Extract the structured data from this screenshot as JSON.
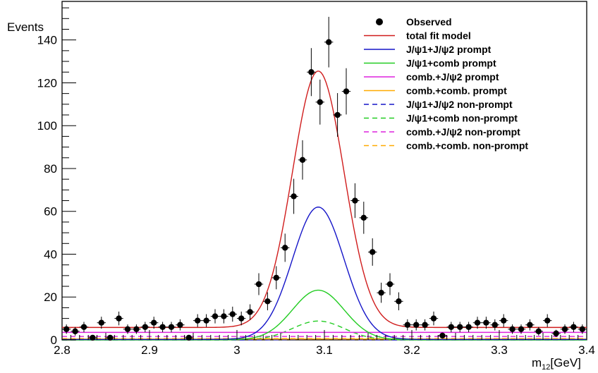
{
  "chart_data": {
    "type": "scatter",
    "title": "",
    "xlabel": "m",
    "xlabel_sub": "12",
    "xlabel_unit": "[GeV]",
    "ylabel": "Events",
    "xlim": [
      2.8,
      3.4
    ],
    "ylim": [
      0,
      158
    ],
    "x_ticks": [
      "2.8",
      "2.9",
      "3",
      "3.1",
      "3.2",
      "3.3",
      "3.4"
    ],
    "y_ticks": [
      "0",
      "20",
      "40",
      "60",
      "80",
      "100",
      "120",
      "140"
    ],
    "grid": false,
    "legend_position": "top-right",
    "bin_halfwidth": 0.005,
    "observed": {
      "name": "Observed",
      "color": "#000000",
      "x": [
        2.805,
        2.815,
        2.825,
        2.835,
        2.845,
        2.855,
        2.865,
        2.875,
        2.885,
        2.895,
        2.905,
        2.915,
        2.925,
        2.935,
        2.945,
        2.955,
        2.965,
        2.975,
        2.985,
        2.995,
        3.005,
        3.015,
        3.025,
        3.035,
        3.045,
        3.055,
        3.065,
        3.075,
        3.085,
        3.095,
        3.105,
        3.115,
        3.125,
        3.135,
        3.145,
        3.155,
        3.165,
        3.175,
        3.185,
        3.195,
        3.205,
        3.215,
        3.225,
        3.235,
        3.245,
        3.255,
        3.265,
        3.275,
        3.285,
        3.295,
        3.305,
        3.315,
        3.325,
        3.335,
        3.345,
        3.355,
        3.365,
        3.375,
        3.385,
        3.395
      ],
      "y": [
        5,
        4,
        6,
        1,
        8,
        1,
        10,
        5,
        5,
        6,
        8,
        6,
        6,
        7,
        1,
        9,
        9,
        11,
        11,
        12,
        10,
        13,
        26,
        18,
        29,
        43,
        67,
        84,
        125,
        111,
        139,
        105,
        116,
        65,
        57,
        41,
        22,
        26,
        18,
        7,
        7,
        7,
        10,
        2,
        6,
        6,
        6,
        8,
        8,
        7,
        9,
        5,
        5,
        7,
        4,
        9,
        3,
        5,
        6,
        5
      ],
      "yerr": [
        2.2,
        2.0,
        2.4,
        1.0,
        2.8,
        1.0,
        3.2,
        2.2,
        2.2,
        2.4,
        2.8,
        2.4,
        2.4,
        2.6,
        1.0,
        3.0,
        3.0,
        3.3,
        3.3,
        3.5,
        3.2,
        3.6,
        5.1,
        4.2,
        5.4,
        6.6,
        8.2,
        9.2,
        11.2,
        10.5,
        11.8,
        10.2,
        10.8,
        8.1,
        7.5,
        6.4,
        4.7,
        5.1,
        4.2,
        2.6,
        2.6,
        2.6,
        3.2,
        1.4,
        2.4,
        2.4,
        2.4,
        2.8,
        2.8,
        2.6,
        3.0,
        2.2,
        2.2,
        2.6,
        2.0,
        3.0,
        1.7,
        2.2,
        2.4,
        2.2
      ]
    },
    "series": [
      {
        "name": "total fit model",
        "color": "#d01c1c",
        "dash": "",
        "const": 5.8,
        "amp": 119.7,
        "mu": 3.093,
        "sigma": 0.0295
      },
      {
        "name": "J/ψ1+J/ψ2 prompt",
        "color": "#1515c8",
        "dash": "",
        "const": 0.2,
        "amp": 61.8,
        "mu": 3.093,
        "sigma": 0.0295
      },
      {
        "name": "J/ψ1+comb prompt",
        "color": "#22cc22",
        "dash": "",
        "const": 0.0,
        "amp": 23.2,
        "mu": 3.093,
        "sigma": 0.0295
      },
      {
        "name": "comb.+J/ψ2 prompt",
        "color": "#dd22dd",
        "dash": "",
        "const": 3.5,
        "amp": 0.0,
        "mu": 3.093,
        "sigma": 0.0295
      },
      {
        "name": "comb.+comb. prompt",
        "color": "#ffaa00",
        "dash": "",
        "const": 0.4,
        "amp": 0.0,
        "mu": 3.093,
        "sigma": 0.0295
      },
      {
        "name": "J/ψ1+J/ψ2 non-prompt",
        "color": "#1515c8",
        "dash": "7,5",
        "const": 0.0,
        "amp": 0.3,
        "mu": 3.093,
        "sigma": 0.0295
      },
      {
        "name": "J/ψ1+comb non-prompt",
        "color": "#22cc22",
        "dash": "7,5",
        "const": 0.0,
        "amp": 8.8,
        "mu": 3.093,
        "sigma": 0.0295
      },
      {
        "name": "comb.+J/ψ2 non-prompt",
        "color": "#dd22dd",
        "dash": "7,5",
        "const": 1.6,
        "amp": 0.0,
        "mu": 3.093,
        "sigma": 0.0295
      },
      {
        "name": "comb.+comb. non-prompt",
        "color": "#ffaa00",
        "dash": "7,5",
        "const": 0.6,
        "amp": 0.0,
        "mu": 3.093,
        "sigma": 0.0295
      }
    ]
  }
}
